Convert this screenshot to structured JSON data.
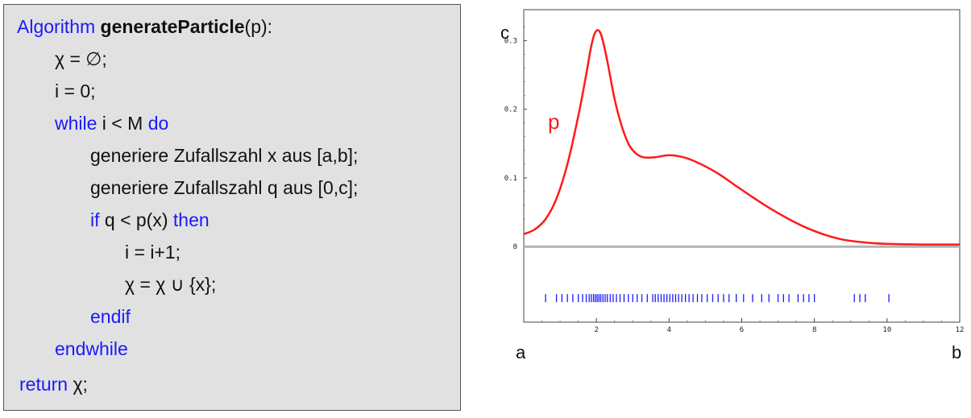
{
  "algorithm": {
    "line1": {
      "keyword": "Algorithm",
      "name": "generateParticle",
      "args": "(p):"
    },
    "line2": "χ = ∅;",
    "line3": "i = 0;",
    "line4": {
      "kw_while": "while",
      "cond": " i < M ",
      "kw_do": "do"
    },
    "line5": "generiere Zufallszahl x aus [a,b];",
    "line6": "generiere Zufallszahl q aus [0,c];",
    "line7": {
      "kw_if": "if",
      "cond": " q < p(x) ",
      "kw_then": "then"
    },
    "line8": "i = i+1;",
    "line9": "χ = χ ∪ {x};",
    "line10": "endif",
    "line11": "endwhile",
    "line12": {
      "kw_return": "return",
      "rest": " χ;"
    }
  },
  "chart_data": {
    "type": "line",
    "series": [
      {
        "name": "p",
        "color": "#ff1a1a",
        "points": [
          [
            0.0,
            0.018
          ],
          [
            0.3,
            0.025
          ],
          [
            0.6,
            0.04
          ],
          [
            0.9,
            0.07
          ],
          [
            1.2,
            0.12
          ],
          [
            1.5,
            0.19
          ],
          [
            1.7,
            0.245
          ],
          [
            1.85,
            0.29
          ],
          [
            1.95,
            0.31
          ],
          [
            2.05,
            0.315
          ],
          [
            2.15,
            0.305
          ],
          [
            2.3,
            0.27
          ],
          [
            2.5,
            0.215
          ],
          [
            2.7,
            0.175
          ],
          [
            2.9,
            0.148
          ],
          [
            3.1,
            0.135
          ],
          [
            3.3,
            0.13
          ],
          [
            3.6,
            0.13
          ],
          [
            4.0,
            0.133
          ],
          [
            4.4,
            0.13
          ],
          [
            4.8,
            0.122
          ],
          [
            5.3,
            0.108
          ],
          [
            5.8,
            0.09
          ],
          [
            6.3,
            0.072
          ],
          [
            6.8,
            0.055
          ],
          [
            7.3,
            0.04
          ],
          [
            7.8,
            0.027
          ],
          [
            8.3,
            0.017
          ],
          [
            8.8,
            0.01
          ],
          [
            9.4,
            0.006
          ],
          [
            10.0,
            0.004
          ],
          [
            11.0,
            0.003
          ],
          [
            12.0,
            0.003
          ]
        ]
      }
    ],
    "samples": [
      0.6,
      0.9,
      1.05,
      1.2,
      1.35,
      1.5,
      1.62,
      1.72,
      1.8,
      1.86,
      1.92,
      1.97,
      2.02,
      2.07,
      2.12,
      2.18,
      2.24,
      2.3,
      2.38,
      2.46,
      2.55,
      2.65,
      2.76,
      2.88,
      3.0,
      3.12,
      3.25,
      3.4,
      3.55,
      3.62,
      3.7,
      3.78,
      3.86,
      3.94,
      4.02,
      4.1,
      4.18,
      4.26,
      4.35,
      4.45,
      4.55,
      4.66,
      4.78,
      4.9,
      5.05,
      5.2,
      5.35,
      5.5,
      5.65,
      5.85,
      6.05,
      6.3,
      6.55,
      6.75,
      7.0,
      7.15,
      7.3,
      7.55,
      7.7,
      7.85,
      8.0,
      9.1,
      9.25,
      9.4,
      10.05
    ],
    "sample_y": -0.075,
    "sample_color": "#1a1aff",
    "xlim": [
      0,
      12
    ],
    "ylim": [
      -0.11,
      0.345
    ],
    "x_ticks": [
      "2",
      "4",
      "6",
      "8",
      "10",
      "12"
    ],
    "x_tick_values": [
      2,
      4,
      6,
      8,
      10,
      12
    ],
    "y_ticks": [
      "0",
      "0.1",
      "0.2",
      "0.3"
    ],
    "y_tick_values": [
      0,
      0.1,
      0.2,
      0.3
    ],
    "zero_line_color": "#b3b3b3",
    "label_p": "p",
    "label_c": "c",
    "label_a": "a",
    "label_b": "b"
  }
}
